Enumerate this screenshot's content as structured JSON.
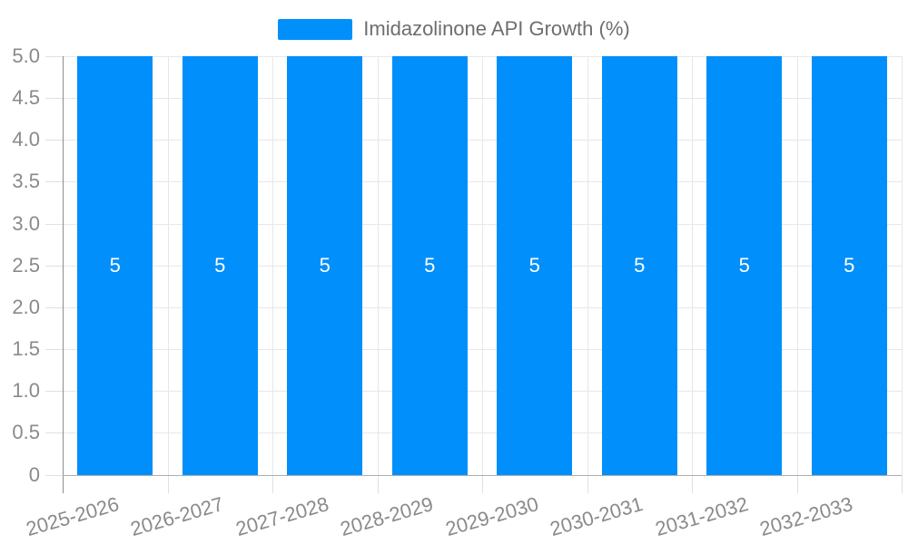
{
  "chart_data": {
    "type": "bar",
    "title": "",
    "legend": "Imidazolinone API Growth (%)",
    "legend_position": "top-center",
    "categories": [
      "2025-2026",
      "2026-2027",
      "2027-2028",
      "2028-2029",
      "2029-2030",
      "2030-2031",
      "2031-2032",
      "2032-2033"
    ],
    "values": [
      5,
      5,
      5,
      5,
      5,
      5,
      5,
      5
    ],
    "bar_value_labels": [
      "5",
      "5",
      "5",
      "5",
      "5",
      "5",
      "5",
      "5"
    ],
    "xlabel": "",
    "ylabel": "",
    "ylim": [
      0,
      5
    ],
    "y_tick_labels": [
      "0",
      "0.5",
      "1.0",
      "1.5",
      "2.0",
      "2.5",
      "3.0",
      "3.5",
      "4.0",
      "4.5",
      "5.0"
    ],
    "grid": "on",
    "colors": {
      "bar": "#008FFB",
      "gridline": "#e7e7e7",
      "tick": "#e0e0e0",
      "y_axis_line": "#8d8d8d",
      "x_baseline": "#aeaeae",
      "axis_label_text": "#8a8a8a",
      "legend_text": "#6e6e6e",
      "bar_value_text": "#ffffff",
      "background": "#ffffff"
    }
  }
}
